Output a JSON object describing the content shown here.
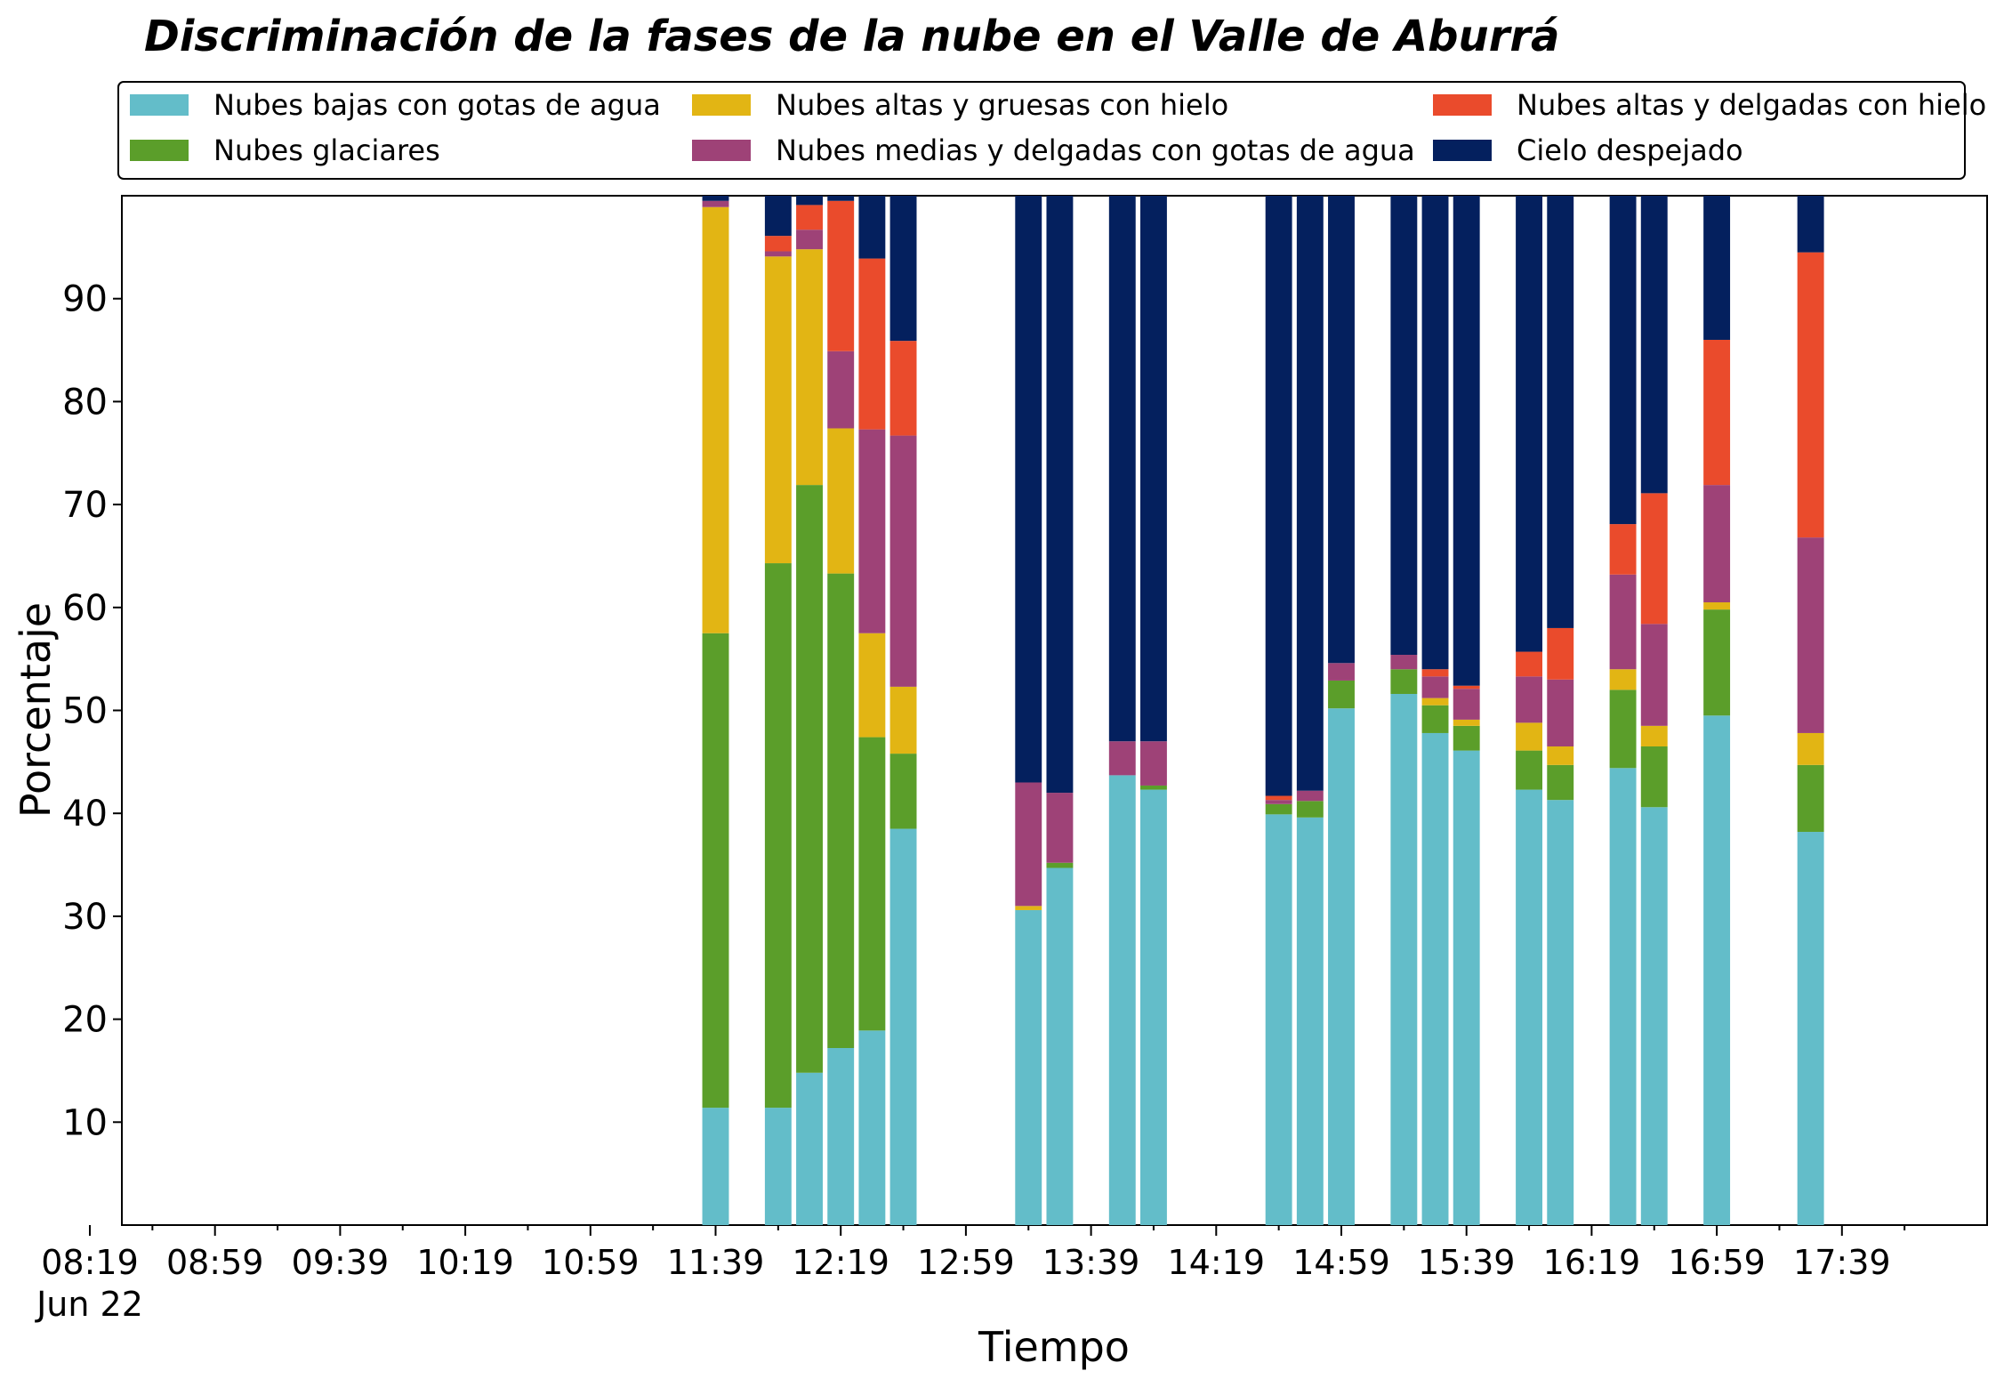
{
  "chart_data": {
    "type": "bar",
    "stacked": true,
    "title": "Discriminación de la fases de la nube en el Valle de Aburrá",
    "xlabel": "Tiempo",
    "ylabel": "Porcentaje",
    "ylim": [
      0,
      100
    ],
    "yticks": [
      10,
      20,
      30,
      40,
      50,
      60,
      70,
      80,
      90
    ],
    "xlim_minutes": [
      0,
      585
    ],
    "xticks": [
      {
        "t": 0,
        "label": "08:19",
        "sublabel": "Jun 22"
      },
      {
        "t": 40,
        "label": "08:59"
      },
      {
        "t": 80,
        "label": "09:39"
      },
      {
        "t": 120,
        "label": "10:19"
      },
      {
        "t": 160,
        "label": "10:59"
      },
      {
        "t": 200,
        "label": "11:39"
      },
      {
        "t": 240,
        "label": "12:19"
      },
      {
        "t": 280,
        "label": "12:59"
      },
      {
        "t": 320,
        "label": "13:39"
      },
      {
        "t": 360,
        "label": "14:19"
      },
      {
        "t": 400,
        "label": "14:59"
      },
      {
        "t": 440,
        "label": "15:39"
      },
      {
        "t": 480,
        "label": "16:19"
      },
      {
        "t": 520,
        "label": "16:59"
      },
      {
        "t": 560,
        "label": "17:39"
      }
    ],
    "minor_tick_step_minutes": 20,
    "bar_width_minutes": 8.5,
    "legend_position": "top",
    "grid": false,
    "series": [
      {
        "name": "Nubes bajas con gotas de agua",
        "color": "#63BDC9"
      },
      {
        "name": "Nubes glaciares",
        "color": "#5B9E2A"
      },
      {
        "name": "Nubes altas y gruesas con hielo",
        "color": "#E2B514"
      },
      {
        "name": "Nubes medias y delgadas con gotas de agua",
        "color": "#9E4277"
      },
      {
        "name": "Nubes altas y delgadas con hielo",
        "color": "#EA4B2C"
      },
      {
        "name": "Cielo despejado",
        "color": "#04205E"
      }
    ],
    "x_times": [
      "11:39",
      "11:59",
      "12:09",
      "12:19",
      "12:29",
      "12:39",
      "13:19",
      "13:29",
      "13:49",
      "13:59",
      "14:39",
      "14:49",
      "14:59",
      "15:19",
      "15:29",
      "15:39",
      "15:59",
      "16:09",
      "16:29",
      "16:39",
      "16:59",
      "17:29"
    ],
    "x_minutes": [
      200,
      220,
      230,
      240,
      250,
      260,
      300,
      310,
      330,
      340,
      380,
      390,
      400,
      420,
      430,
      440,
      460,
      470,
      490,
      500,
      520,
      550
    ],
    "values": [
      [
        11.4,
        46.1,
        41.4,
        0.6,
        0.0,
        0.5
      ],
      [
        11.4,
        52.9,
        29.8,
        0.5,
        1.5,
        3.9
      ],
      [
        14.8,
        57.1,
        22.9,
        1.9,
        2.4,
        0.9
      ],
      [
        17.2,
        46.1,
        14.1,
        7.5,
        14.6,
        0.5
      ],
      [
        18.9,
        28.5,
        10.1,
        19.8,
        16.6,
        6.1
      ],
      [
        38.5,
        7.3,
        6.5,
        24.4,
        9.2,
        14.1
      ],
      [
        30.6,
        0.0,
        0.4,
        12.0,
        0.0,
        57.0
      ],
      [
        34.7,
        0.5,
        0.0,
        6.8,
        0.0,
        58.0
      ],
      [
        43.7,
        0.0,
        0.0,
        3.3,
        0.0,
        53.0
      ],
      [
        42.3,
        0.4,
        0.0,
        4.3,
        0.0,
        53.0
      ],
      [
        39.9,
        1.0,
        0.0,
        0.4,
        0.4,
        58.3
      ],
      [
        39.6,
        1.6,
        0.0,
        1.0,
        0.0,
        57.8
      ],
      [
        50.2,
        2.7,
        0.0,
        1.7,
        0.0,
        45.4
      ],
      [
        51.6,
        2.4,
        0.0,
        1.4,
        0.0,
        44.6
      ],
      [
        47.8,
        2.7,
        0.7,
        2.1,
        0.7,
        46.0
      ],
      [
        46.1,
        2.4,
        0.6,
        3.0,
        0.3,
        47.6
      ],
      [
        42.3,
        3.8,
        2.7,
        4.5,
        2.4,
        44.3
      ],
      [
        41.3,
        3.4,
        1.8,
        6.5,
        5.0,
        42.0
      ],
      [
        44.4,
        7.6,
        2.0,
        9.2,
        4.9,
        31.9
      ],
      [
        40.6,
        5.9,
        2.0,
        9.9,
        12.7,
        28.9
      ],
      [
        49.5,
        10.3,
        0.7,
        11.4,
        14.1,
        14.0
      ],
      [
        38.2,
        6.5,
        3.1,
        19.0,
        27.7,
        5.5
      ]
    ]
  }
}
